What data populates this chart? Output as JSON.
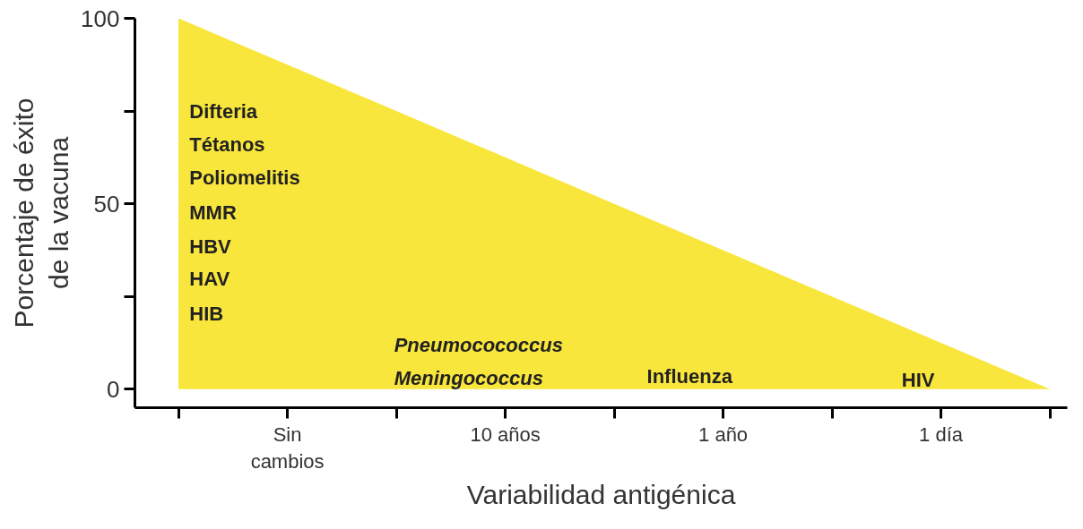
{
  "chart_data": {
    "type": "area",
    "xlabel": "Variabilidad antigénica",
    "ylabel": "Porcentaje de éxito\nde la vacuna",
    "categories": [
      null,
      "Sin\ncambios",
      null,
      "10 años",
      null,
      "1 año",
      null,
      "1 día",
      null
    ],
    "values": [
      100,
      87.5,
      75,
      62.5,
      50,
      37.5,
      25,
      12.5,
      0
    ],
    "color": "#f8e63c",
    "ylim": [
      -5,
      100
    ],
    "yticks": [
      0,
      {
        "value": 25,
        "label": null
      },
      50,
      {
        "value": 75,
        "label": null
      },
      100
    ],
    "grid": false,
    "annotations": [
      "Difteria",
      "Tétanos",
      "Poliomelitis",
      "MMR",
      "HBV",
      "HAV",
      "HIB",
      "Pneumocococcus",
      "Meningococcus",
      "Influenza",
      "HIV"
    ]
  }
}
